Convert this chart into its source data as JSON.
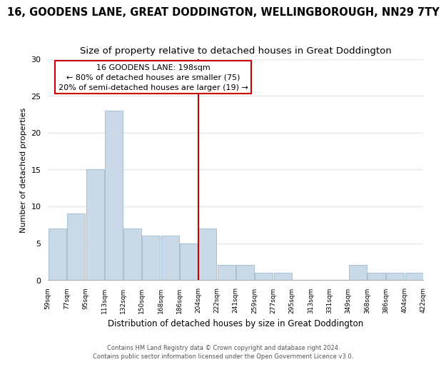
{
  "title": "16, GOODENS LANE, GREAT DODDINGTON, WELLINGBOROUGH, NN29 7TY",
  "subtitle": "Size of property relative to detached houses in Great Doddington",
  "xlabel": "Distribution of detached houses by size in Great Doddington",
  "ylabel": "Number of detached properties",
  "bins": [
    "59sqm",
    "77sqm",
    "95sqm",
    "113sqm",
    "132sqm",
    "150sqm",
    "168sqm",
    "186sqm",
    "204sqm",
    "222sqm",
    "241sqm",
    "259sqm",
    "277sqm",
    "295sqm",
    "313sqm",
    "331sqm",
    "349sqm",
    "368sqm",
    "386sqm",
    "404sqm",
    "422sqm"
  ],
  "counts": [
    7,
    9,
    15,
    23,
    7,
    6,
    6,
    5,
    7,
    2,
    2,
    1,
    1,
    0,
    0,
    0,
    2,
    1,
    1,
    1
  ],
  "bar_color": "#c9d9e8",
  "bar_edge_color": "#a8c0d4",
  "vline_color": "#cc0000",
  "ylim": [
    0,
    30
  ],
  "yticks": [
    0,
    5,
    10,
    15,
    20,
    25,
    30
  ],
  "annotation_title": "16 GOODENS LANE: 198sqm",
  "annotation_line1": "← 80% of detached houses are smaller (75)",
  "annotation_line2": "20% of semi-detached houses are larger (19) →",
  "annotation_box_color": "#ffffff",
  "annotation_box_edge": "#cc0000",
  "footer1": "Contains HM Land Registry data © Crown copyright and database right 2024.",
  "footer2": "Contains public sector information licensed under the Open Government Licence v3.0.",
  "background_color": "#ffffff",
  "plot_bg_color": "#ffffff",
  "grid_color": "#e0e8f0",
  "title_fontsize": 10.5,
  "subtitle_fontsize": 9.5
}
